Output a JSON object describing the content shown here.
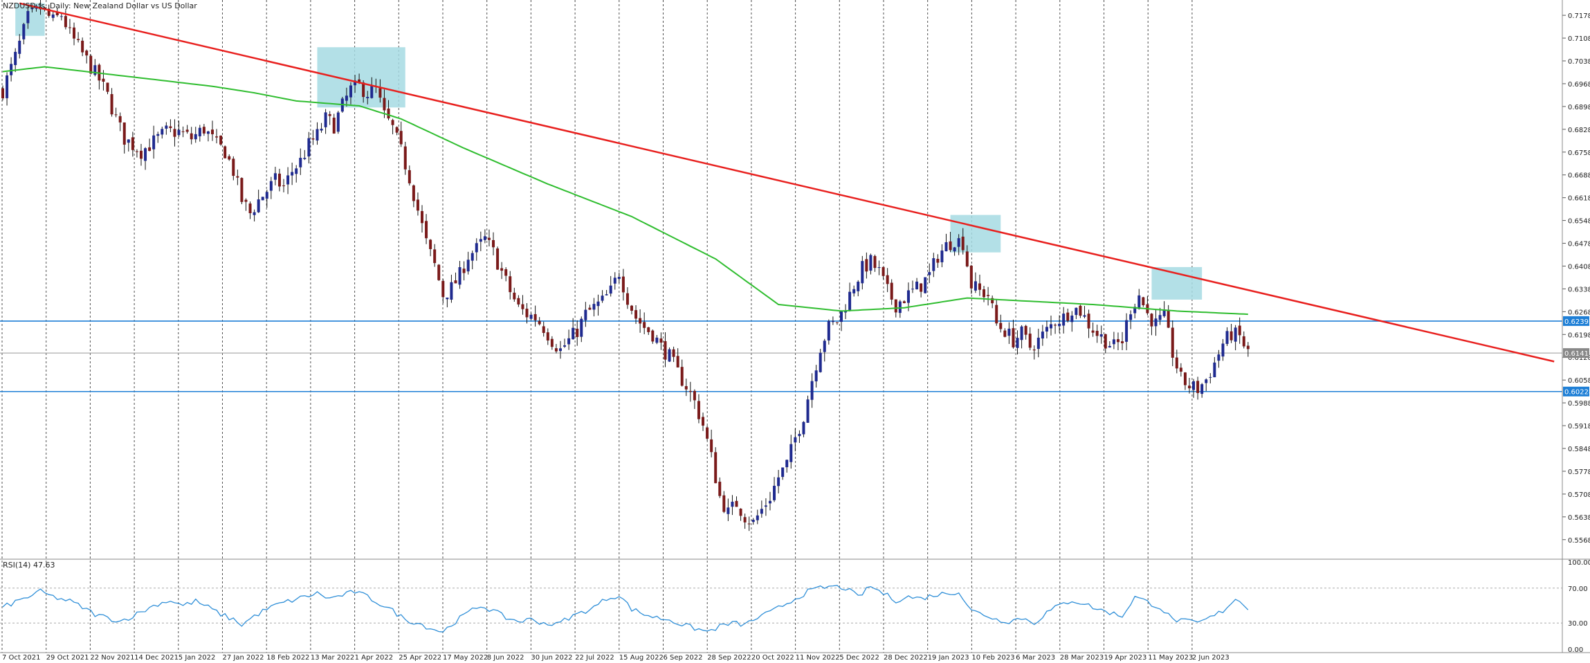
{
  "chart_data": [
    {
      "type": "line",
      "title": "NZDUSD.fs, Daily:  New Zealand Dollar vs US Dollar",
      "date_labels": [
        "7 Oct 2021",
        "29 Oct 2021",
        "22 Nov 2021",
        "14 Dec 2021",
        "5 Jan 2022",
        "27 Jan 2022",
        "18 Feb 2022",
        "13 Mar 2022",
        "1 Apr 2022",
        "25 Apr 2022",
        "17 May 2022",
        "8 Jun 2022",
        "30 Jun 2022",
        "22 Jul 2022",
        "15 Aug 2022",
        "6 Sep 2022",
        "28 Sep 2022",
        "20 Oct 2022",
        "11 Nov 2022",
        "5 Dec 2022",
        "28 Dec 2022",
        "19 Jan 2023",
        "10 Feb 2023",
        "6 Mar 2023",
        "28 Mar 2023",
        "19 Apr 2023",
        "11 May 2023",
        "2 Jun 2023"
      ],
      "y_ticks": [
        "0.71780",
        "0.71080",
        "0.70380",
        "0.69680",
        "0.68980",
        "0.68280",
        "0.67580",
        "0.66880",
        "0.66180",
        "0.65480",
        "0.64780",
        "0.64080",
        "0.63380",
        "0.62680",
        "0.61980",
        "0.61280",
        "0.60580",
        "0.59880",
        "0.59180",
        "0.58480",
        "0.57780",
        "0.57080",
        "0.56380",
        "0.55680"
      ],
      "ylim": [
        0.5525,
        0.7225
      ],
      "close_anchors": [
        [
          0,
          0.6948
        ],
        [
          3,
          0.705
        ],
        [
          6,
          0.717
        ],
        [
          9,
          0.72
        ],
        [
          12,
          0.716
        ],
        [
          14,
          0.718
        ],
        [
          16,
          0.712
        ],
        [
          19,
          0.706
        ],
        [
          21,
          0.702
        ],
        [
          23,
          0.698
        ],
        [
          25,
          0.693
        ],
        [
          27,
          0.686
        ],
        [
          29,
          0.68
        ],
        [
          31,
          0.678
        ],
        [
          33,
          0.676
        ],
        [
          36,
          0.679
        ],
        [
          39,
          0.682
        ],
        [
          42,
          0.682
        ],
        [
          45,
          0.68
        ],
        [
          48,
          0.683
        ],
        [
          51,
          0.678
        ],
        [
          53,
          0.676
        ],
        [
          55,
          0.67
        ],
        [
          57,
          0.661
        ],
        [
          59,
          0.657
        ],
        [
          61,
          0.661
        ],
        [
          63,
          0.664
        ],
        [
          65,
          0.667
        ],
        [
          67,
          0.665
        ],
        [
          69,
          0.67
        ],
        [
          71,
          0.673
        ],
        [
          73,
          0.678
        ],
        [
          75,
          0.681
        ],
        [
          77,
          0.686
        ],
        [
          79,
          0.684
        ],
        [
          81,
          0.69
        ],
        [
          83,
          0.695
        ],
        [
          85,
          0.696
        ],
        [
          87,
          0.694
        ],
        [
          89,
          0.695
        ],
        [
          91,
          0.687
        ],
        [
          93,
          0.683
        ],
        [
          95,
          0.676
        ],
        [
          97,
          0.668
        ],
        [
          99,
          0.658
        ],
        [
          101,
          0.648
        ],
        [
          103,
          0.641
        ],
        [
          105,
          0.632
        ],
        [
          107,
          0.634
        ],
        [
          109,
          0.638
        ],
        [
          111,
          0.644
        ],
        [
          113,
          0.646
        ],
        [
          115,
          0.649
        ],
        [
          117,
          0.645
        ],
        [
          119,
          0.639
        ],
        [
          121,
          0.633
        ],
        [
          123,
          0.628
        ],
        [
          125,
          0.626
        ],
        [
          127,
          0.625
        ],
        [
          129,
          0.622
        ],
        [
          131,
          0.618
        ],
        [
          133,
          0.615
        ],
        [
          135,
          0.618
        ],
        [
          137,
          0.621
        ],
        [
          139,
          0.626
        ],
        [
          141,
          0.628
        ],
        [
          143,
          0.63
        ],
        [
          145,
          0.633
        ],
        [
          147,
          0.639
        ],
        [
          149,
          0.631
        ],
        [
          151,
          0.625
        ],
        [
          153,
          0.622
        ],
        [
          155,
          0.62
        ],
        [
          157,
          0.616
        ],
        [
          159,
          0.613
        ],
        [
          161,
          0.608
        ],
        [
          163,
          0.604
        ],
        [
          165,
          0.599
        ],
        [
          167,
          0.592
        ],
        [
          169,
          0.582
        ],
        [
          171,
          0.57
        ],
        [
          173,
          0.565
        ],
        [
          175,
          0.568
        ],
        [
          177,
          0.564
        ],
        [
          179,
          0.562
        ],
        [
          181,
          0.566
        ],
        [
          183,
          0.57
        ],
        [
          185,
          0.576
        ],
        [
          187,
          0.58
        ],
        [
          189,
          0.588
        ],
        [
          191,
          0.595
        ],
        [
          193,
          0.606
        ],
        [
          195,
          0.616
        ],
        [
          197,
          0.622
        ],
        [
          199,
          0.624
        ],
        [
          201,
          0.629
        ],
        [
          203,
          0.635
        ],
        [
          205,
          0.64
        ],
        [
          207,
          0.642
        ],
        [
          209,
          0.639
        ],
        [
          211,
          0.633
        ],
        [
          213,
          0.629
        ],
        [
          215,
          0.631
        ],
        [
          217,
          0.633
        ],
        [
          219,
          0.635
        ],
        [
          221,
          0.638
        ],
        [
          223,
          0.644
        ],
        [
          225,
          0.647
        ],
        [
          227,
          0.649
        ],
        [
          229,
          0.648
        ],
        [
          231,
          0.635
        ],
        [
          233,
          0.633
        ],
        [
          235,
          0.632
        ],
        [
          237,
          0.623
        ],
        [
          239,
          0.621
        ],
        [
          241,
          0.618
        ],
        [
          243,
          0.62
        ],
        [
          245,
          0.616
        ],
        [
          247,
          0.618
        ],
        [
          249,
          0.621
        ],
        [
          251,
          0.624
        ],
        [
          253,
          0.625
        ],
        [
          255,
          0.628
        ],
        [
          257,
          0.627
        ],
        [
          259,
          0.623
        ],
        [
          261,
          0.62
        ],
        [
          263,
          0.618
        ],
        [
          265,
          0.616
        ],
        [
          267,
          0.618
        ],
        [
          269,
          0.628
        ],
        [
          271,
          0.632
        ],
        [
          273,
          0.626
        ],
        [
          275,
          0.623
        ],
        [
          277,
          0.625
        ],
        [
          279,
          0.614
        ],
        [
          281,
          0.606
        ],
        [
          283,
          0.604
        ],
        [
          285,
          0.603
        ],
        [
          287,
          0.606
        ],
        [
          289,
          0.611
        ],
        [
          291,
          0.617
        ],
        [
          293,
          0.62
        ],
        [
          295,
          0.619
        ],
        [
          297,
          0.6141
        ]
      ],
      "series": [
        {
          "name": "MA",
          "color": "#2fbd2f"
        },
        {
          "name": "Trendline",
          "color": "#e8201e"
        }
      ],
      "ma_anchors": [
        [
          0,
          0.7005
        ],
        [
          10,
          0.702
        ],
        [
          30,
          0.699
        ],
        [
          50,
          0.696
        ],
        [
          60,
          0.694
        ],
        [
          70,
          0.6915
        ],
        [
          85,
          0.69
        ],
        [
          95,
          0.686
        ],
        [
          110,
          0.677
        ],
        [
          130,
          0.666
        ],
        [
          150,
          0.656
        ],
        [
          170,
          0.643
        ],
        [
          185,
          0.629
        ],
        [
          200,
          0.627
        ],
        [
          215,
          0.628
        ],
        [
          230,
          0.631
        ],
        [
          245,
          0.63
        ],
        [
          260,
          0.629
        ],
        [
          280,
          0.627
        ],
        [
          297,
          0.626
        ]
      ],
      "trendline": {
        "start": [
          4,
          0.7215
        ],
        "end": [
          370,
          0.6115
        ]
      },
      "horizontal_levels": [
        {
          "value": 0.62392,
          "label": "0.62392",
          "color": "#1e7fd6"
        },
        {
          "value": 0.60228,
          "label": "0.60228",
          "color": "#1e7fd6"
        }
      ],
      "current_price": {
        "value": 0.6141,
        "label": "0.61417"
      },
      "highlight_boxes": [
        {
          "x": [
            3,
            10
          ],
          "y": [
            0.7115,
            0.7215
          ]
        },
        {
          "x": [
            75,
            96
          ],
          "y": [
            0.6895,
            0.708
          ]
        },
        {
          "x": [
            226,
            238
          ],
          "y": [
            0.645,
            0.6565
          ]
        },
        {
          "x": [
            274,
            286
          ],
          "y": [
            0.6305,
            0.6405
          ]
        }
      ]
    },
    {
      "type": "line",
      "title": "RSI(14) 47.63",
      "y_ticks": [
        "100.00",
        "70.00",
        "30.00",
        "0.00"
      ],
      "ylim": [
        0,
        100
      ],
      "levels": [
        70,
        30
      ],
      "color": "#2f8fd8",
      "rsi_anchors": [
        [
          0,
          48
        ],
        [
          5,
          58
        ],
        [
          9,
          66
        ],
        [
          12,
          60
        ],
        [
          16,
          55
        ],
        [
          19,
          48
        ],
        [
          22,
          40
        ],
        [
          25,
          36
        ],
        [
          28,
          32
        ],
        [
          31,
          38
        ],
        [
          34,
          45
        ],
        [
          37,
          52
        ],
        [
          40,
          56
        ],
        [
          43,
          50
        ],
        [
          46,
          55
        ],
        [
          49,
          48
        ],
        [
          52,
          40
        ],
        [
          55,
          34
        ],
        [
          57,
          28
        ],
        [
          60,
          38
        ],
        [
          63,
          46
        ],
        [
          66,
          52
        ],
        [
          69,
          56
        ],
        [
          72,
          60
        ],
        [
          75,
          64
        ],
        [
          78,
          58
        ],
        [
          81,
          62
        ],
        [
          84,
          66
        ],
        [
          87,
          60
        ],
        [
          90,
          52
        ],
        [
          93,
          44
        ],
        [
          96,
          34
        ],
        [
          99,
          30
        ],
        [
          102,
          24
        ],
        [
          105,
          20
        ],
        [
          108,
          32
        ],
        [
          111,
          42
        ],
        [
          114,
          50
        ],
        [
          117,
          44
        ],
        [
          120,
          36
        ],
        [
          123,
          32
        ],
        [
          126,
          34
        ],
        [
          129,
          30
        ],
        [
          132,
          28
        ],
        [
          135,
          36
        ],
        [
          138,
          42
        ],
        [
          141,
          48
        ],
        [
          144,
          58
        ],
        [
          147,
          62
        ],
        [
          150,
          46
        ],
        [
          153,
          40
        ],
        [
          156,
          36
        ],
        [
          159,
          34
        ],
        [
          162,
          28
        ],
        [
          165,
          24
        ],
        [
          168,
          20
        ],
        [
          171,
          26
        ],
        [
          174,
          30
        ],
        [
          177,
          28
        ],
        [
          180,
          36
        ],
        [
          183,
          42
        ],
        [
          186,
          50
        ],
        [
          189,
          58
        ],
        [
          192,
          66
        ],
        [
          195,
          70
        ],
        [
          198,
          72
        ],
        [
          201,
          70
        ],
        [
          204,
          60
        ],
        [
          207,
          72
        ],
        [
          210,
          64
        ],
        [
          213,
          56
        ],
        [
          216,
          60
        ],
        [
          219,
          58
        ],
        [
          222,
          62
        ],
        [
          225,
          64
        ],
        [
          228,
          66
        ],
        [
          231,
          44
        ],
        [
          234,
          40
        ],
        [
          237,
          34
        ],
        [
          240,
          32
        ],
        [
          243,
          36
        ],
        [
          246,
          30
        ],
        [
          249,
          42
        ],
        [
          252,
          50
        ],
        [
          255,
          56
        ],
        [
          258,
          52
        ],
        [
          261,
          46
        ],
        [
          264,
          42
        ],
        [
          267,
          38
        ],
        [
          270,
          60
        ],
        [
          273,
          54
        ],
        [
          276,
          48
        ],
        [
          279,
          34
        ],
        [
          282,
          32
        ],
        [
          285,
          30
        ],
        [
          288,
          36
        ],
        [
          291,
          44
        ],
        [
          294,
          58
        ],
        [
          297,
          47.63
        ]
      ]
    }
  ]
}
